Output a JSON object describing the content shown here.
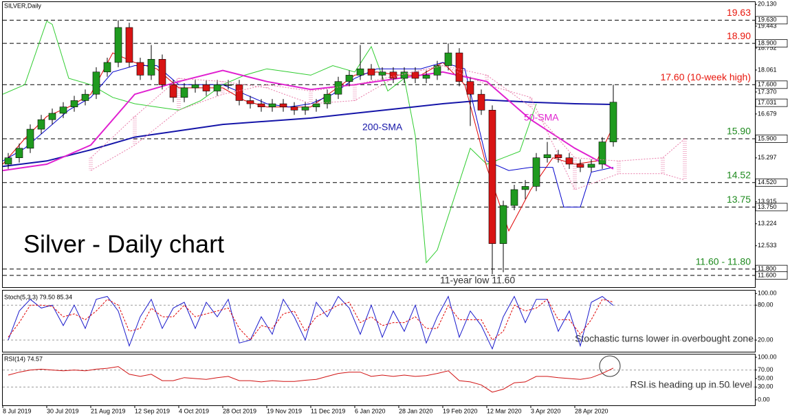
{
  "chart_data": [
    {
      "type": "candlestick",
      "title": "SILVER,Daily",
      "heading": "Silver - Daily chart",
      "note": "11-year low 11.60",
      "xlim": [
        0,
        273.5
      ],
      "ylim": [
        11.23,
        20.2
      ],
      "yticks": [
        {
          "value": 20.13,
          "label": "20.130"
        },
        {
          "value": 19.443,
          "label": "19.443"
        },
        {
          "value": 18.752,
          "label": "18.752"
        },
        {
          "value": 18.061,
          "label": "18.061"
        },
        {
          "value": 17.37,
          "label": "17.370"
        },
        {
          "value": 16.679,
          "label": "16.679"
        },
        {
          "value": 15.297,
          "label": "15.297"
        },
        {
          "value": 13.915,
          "label": "13.915"
        },
        {
          "value": 13.224,
          "label": "13.224"
        },
        {
          "value": 12.533,
          "label": "12.533"
        }
      ],
      "price_markers": [
        {
          "value": 19.63,
          "label": "19.630"
        },
        {
          "value": 18.9,
          "label": "18.900"
        },
        {
          "value": 17.6,
          "label": "17.600"
        },
        {
          "value": 17.031,
          "label": "17.031"
        },
        {
          "value": 15.9,
          "label": "15.900"
        },
        {
          "value": 14.52,
          "label": "14.520"
        },
        {
          "value": 13.75,
          "label": "13.750"
        },
        {
          "value": 11.8,
          "label": "11.800"
        },
        {
          "value": 11.6,
          "label": "11.600"
        }
      ],
      "levels": [
        {
          "value": 19.63,
          "label": "19.63",
          "color": "#e8160c"
        },
        {
          "value": 18.9,
          "label": "18.90",
          "color": "#e8160c"
        },
        {
          "value": 17.6,
          "label": "17.60 (10-week high)",
          "color": "#e8160c"
        },
        {
          "value": 15.9,
          "label": "15.90",
          "color": "#1e8a1e"
        },
        {
          "value": 14.52,
          "label": "14.52",
          "color": "#1e8a1e"
        },
        {
          "value": 13.75,
          "label": "13.75",
          "color": "#1e8a1e"
        },
        {
          "value": 11.8,
          "label": "11.60 - 11.80",
          "color": "#1e8a1e"
        },
        {
          "value": 11.6
        }
      ],
      "up_color": "#1f9a1f",
      "down_color": "#d81414",
      "x": [
        2,
        6,
        10,
        14,
        18,
        22,
        26,
        30,
        34,
        38,
        42,
        46,
        50,
        54,
        58,
        62,
        66,
        70,
        74,
        78,
        82,
        86,
        90,
        94,
        98,
        102,
        106,
        110,
        114,
        118,
        122,
        126,
        130,
        134,
        138,
        142,
        146,
        150,
        154,
        158,
        162,
        166,
        170,
        174,
        178,
        182,
        186,
        190,
        194,
        198,
        202,
        206,
        210,
        214,
        218,
        222
      ],
      "open": [
        15.1,
        15.3,
        15.6,
        16.2,
        16.5,
        16.7,
        16.9,
        17.1,
        17.3,
        18.0,
        18.3,
        19.4,
        18.3,
        17.9,
        18.4,
        17.6,
        17.2,
        17.5,
        17.6,
        17.4,
        17.6,
        17.6,
        17.1,
        17.0,
        16.9,
        17.0,
        16.9,
        16.8,
        16.9,
        17.0,
        17.3,
        17.7,
        17.9,
        18.1,
        17.9,
        18.0,
        17.8,
        18.0,
        17.8,
        17.9,
        18.2,
        18.6,
        17.7,
        17.3,
        16.8,
        12.6,
        13.8,
        14.3,
        14.4,
        15.3,
        15.4,
        15.3,
        15.1,
        15.0,
        15.1,
        15.8
      ],
      "high": [
        15.45,
        15.75,
        16.35,
        16.65,
        16.85,
        17.05,
        17.25,
        17.45,
        18.15,
        18.45,
        19.63,
        19.55,
        18.45,
        18.85,
        18.55,
        17.75,
        17.65,
        17.75,
        17.75,
        17.75,
        17.75,
        17.75,
        17.25,
        17.15,
        17.15,
        17.15,
        17.05,
        17.05,
        17.15,
        17.45,
        17.85,
        18.05,
        18.85,
        18.25,
        18.15,
        18.15,
        18.15,
        18.15,
        18.05,
        18.35,
        18.9,
        18.75,
        17.85,
        17.45,
        16.95,
        13.95,
        14.45,
        14.6,
        15.45,
        15.8,
        15.55,
        15.45,
        15.25,
        15.25,
        15.95,
        17.6
      ],
      "low": [
        14.95,
        15.15,
        15.45,
        16.05,
        16.35,
        16.55,
        16.75,
        16.95,
        17.15,
        17.85,
        18.15,
        18.15,
        17.75,
        17.75,
        17.45,
        17.05,
        17.05,
        17.35,
        17.25,
        17.25,
        17.45,
        16.95,
        16.85,
        16.75,
        16.75,
        16.75,
        16.65,
        16.65,
        16.75,
        16.85,
        17.15,
        17.55,
        17.75,
        17.75,
        17.75,
        17.65,
        17.65,
        17.65,
        17.65,
        17.75,
        18.05,
        17.55,
        16.3,
        16.65,
        11.64,
        11.7,
        13.65,
        14.0,
        14.25,
        15.15,
        15.15,
        14.95,
        14.85,
        14.85,
        14.95,
        15.65
      ],
      "close": [
        15.3,
        15.6,
        16.2,
        16.5,
        16.7,
        16.9,
        17.1,
        17.3,
        18.0,
        18.3,
        19.4,
        18.3,
        17.9,
        18.4,
        17.6,
        17.2,
        17.5,
        17.6,
        17.4,
        17.6,
        17.6,
        17.1,
        17.0,
        16.9,
        17.0,
        16.9,
        16.8,
        16.9,
        17.0,
        17.3,
        17.7,
        17.9,
        18.1,
        17.9,
        18.0,
        17.8,
        18.0,
        17.8,
        17.9,
        18.2,
        18.6,
        17.7,
        17.3,
        16.8,
        12.6,
        13.8,
        14.3,
        14.4,
        15.3,
        15.4,
        15.3,
        15.1,
        15.0,
        15.1,
        15.8,
        17.05
      ],
      "cloud": {
        "color": "#e87aa8",
        "x": [
          32,
          48,
          64,
          80,
          96,
          112,
          128,
          144,
          160,
          176,
          192,
          208,
          224,
          240,
          248
        ],
        "span_a": [
          15.3,
          16.6,
          17.8,
          17.7,
          17.5,
          17.0,
          17.1,
          17.9,
          18.2,
          17.9,
          16.9,
          15.3,
          15.2,
          15.3,
          15.9
        ],
        "span_b": [
          14.9,
          15.7,
          16.8,
          17.3,
          17.6,
          17.4,
          17.6,
          17.9,
          18.2,
          17.6,
          17.2,
          14.3,
          14.8,
          14.8,
          14.6
        ]
      },
      "series": [
        {
          "color": "#2ecc2e",
          "width": 1,
          "x": [
            0,
            8,
            16,
            18,
            24,
            32,
            40,
            48,
            56,
            64,
            72,
            80,
            88,
            96,
            104,
            112,
            120,
            128,
            134,
            140,
            146,
            150,
            154,
            158,
            164,
            170,
            176,
            182,
            188,
            194
          ],
          "values": [
            17.3,
            17.6,
            19.6,
            19.5,
            17.8,
            17.6,
            17.2,
            17.0,
            16.9,
            16.8,
            17.1,
            17.6,
            17.9,
            18.1,
            18.0,
            17.9,
            18.2,
            18.0,
            18.8,
            17.4,
            17.8,
            16.0,
            12.0,
            12.4,
            14.0,
            15.6,
            15.1,
            15.3,
            15.5,
            17.0
          ]
        },
        {
          "color": "#e00000",
          "width": 1,
          "x": [
            0,
            8,
            16,
            24,
            32,
            40,
            48,
            56,
            64,
            72,
            80,
            88,
            96,
            104,
            112,
            120,
            128,
            136,
            144,
            152,
            160,
            168,
            176,
            184,
            192,
            200,
            208,
            216,
            222
          ],
          "values": [
            15.1,
            15.9,
            16.6,
            16.9,
            17.3,
            18.6,
            18.3,
            18.1,
            17.5,
            17.5,
            17.5,
            17.1,
            16.9,
            16.9,
            16.9,
            17.4,
            17.9,
            18.0,
            17.9,
            17.9,
            18.3,
            17.6,
            15.0,
            13.0,
            14.3,
            15.3,
            15.1,
            15.2,
            16.3
          ]
        },
        {
          "color": "#0000cc",
          "width": 1,
          "x": [
            0,
            8,
            16,
            24,
            32,
            40,
            48,
            56,
            64,
            72,
            80,
            88,
            96,
            104,
            112,
            120,
            128,
            136,
            144,
            152,
            160,
            168,
            176,
            184,
            192,
            200,
            204,
            210,
            214,
            222
          ],
          "values": [
            15.2,
            15.6,
            16.2,
            16.8,
            17.2,
            18.0,
            18.2,
            18.2,
            17.6,
            17.6,
            17.6,
            17.3,
            17.0,
            16.9,
            17.0,
            17.3,
            17.8,
            18.1,
            18.1,
            18.1,
            18.3,
            18.1,
            15.2,
            14.9,
            15.0,
            15.0,
            13.75,
            13.75,
            14.85,
            15.0
          ]
        },
        {
          "name": "200-SMA",
          "color": "#1414a8",
          "width": 2,
          "x": [
            0,
            16,
            32,
            48,
            64,
            80,
            96,
            112,
            128,
            144,
            160,
            176,
            192,
            208,
            222
          ],
          "values": [
            15.03,
            15.2,
            15.55,
            15.95,
            16.15,
            16.35,
            16.45,
            16.55,
            16.7,
            16.85,
            17.0,
            17.12,
            17.05,
            17.0,
            16.98
          ]
        },
        {
          "name": "50-SMA",
          "color": "#e020d0",
          "width": 2,
          "x": [
            0,
            16,
            32,
            48,
            64,
            80,
            96,
            112,
            128,
            144,
            160,
            176,
            192,
            208,
            222
          ],
          "values": [
            14.9,
            15.1,
            15.7,
            17.3,
            17.7,
            18.05,
            17.7,
            17.45,
            17.6,
            17.8,
            18.0,
            17.7,
            16.5,
            15.6,
            14.95
          ]
        }
      ]
    },
    {
      "type": "line",
      "title": "Stoch(5,3,3) 79.50 85.34",
      "note": "Stochastic turns lower in overbought zone",
      "xlim": [
        0,
        273.5
      ],
      "ylim": [
        0,
        105
      ],
      "yticks": [
        {
          "value": 100,
          "label": "100.00"
        },
        {
          "value": 80,
          "label": "80.00"
        },
        {
          "value": 20,
          "label": "20.00"
        }
      ],
      "levels": [
        80,
        20
      ],
      "x": [
        2,
        6,
        10,
        14,
        18,
        22,
        26,
        30,
        34,
        38,
        42,
        46,
        50,
        54,
        58,
        62,
        66,
        70,
        74,
        78,
        82,
        86,
        90,
        94,
        98,
        102,
        106,
        110,
        114,
        118,
        122,
        126,
        130,
        134,
        138,
        142,
        146,
        150,
        154,
        158,
        162,
        166,
        170,
        174,
        178,
        182,
        186,
        190,
        194,
        198,
        202,
        206,
        210,
        214,
        218,
        222
      ],
      "series": [
        {
          "color": "#1a1acc",
          "values": [
            20,
            70,
            90,
            75,
            80,
            45,
            80,
            40,
            90,
            95,
            70,
            10,
            60,
            90,
            40,
            75,
            85,
            40,
            85,
            60,
            90,
            15,
            20,
            60,
            30,
            90,
            60,
            20,
            85,
            60,
            95,
            75,
            30,
            80,
            25,
            70,
            35,
            80,
            15,
            60,
            95,
            25,
            70,
            45,
            5,
            60,
            95,
            50,
            90,
            90,
            35,
            70,
            10,
            85,
            95,
            79.5
          ]
        },
        {
          "color": "#e00000",
          "dashed": true,
          "values": [
            25,
            50,
            80,
            80,
            78,
            60,
            65,
            55,
            70,
            90,
            80,
            35,
            40,
            75,
            60,
            60,
            80,
            60,
            65,
            70,
            75,
            40,
            20,
            45,
            40,
            65,
            70,
            35,
            60,
            70,
            80,
            85,
            50,
            60,
            45,
            50,
            50,
            60,
            40,
            40,
            80,
            55,
            55,
            55,
            20,
            35,
            80,
            70,
            75,
            90,
            55,
            55,
            30,
            55,
            90,
            85.34
          ]
        }
      ]
    },
    {
      "type": "line",
      "title": "RSI(14) 74.57",
      "note": "RSI is heading up in 50 level",
      "xlim": [
        0,
        273.5
      ],
      "ylim": [
        -13,
        106.5
      ],
      "yticks": [
        {
          "value": 100,
          "label": "100.00"
        },
        {
          "value": 70,
          "label": "70.00"
        },
        {
          "value": 50,
          "label": "50.00"
        },
        {
          "value": 30,
          "label": "30.00"
        },
        {
          "value": 0,
          "label": "0.00"
        }
      ],
      "levels": [
        70,
        30
      ],
      "xticks": [
        {
          "value": 0,
          "label": "8 Jul 2019"
        },
        {
          "value": 16,
          "label": "30 Jul 2019"
        },
        {
          "value": 32,
          "label": "21 Aug 2019"
        },
        {
          "value": 48,
          "label": "12 Sep 2019"
        },
        {
          "value": 64,
          "label": "4 Oct 2019"
        },
        {
          "value": 80,
          "label": "28 Oct 2019"
        },
        {
          "value": 96,
          "label": "19 Nov 2019"
        },
        {
          "value": 112,
          "label": "11 Dec 2019"
        },
        {
          "value": 128,
          "label": "6 Jan 2020"
        },
        {
          "value": 144,
          "label": "28 Jan 2020"
        },
        {
          "value": 160,
          "label": "19 Feb 2020"
        },
        {
          "value": 176,
          "label": "12 Mar 2020"
        },
        {
          "value": 192,
          "label": "3 Apr 2020"
        },
        {
          "value": 208,
          "label": "28 Apr 2020"
        }
      ],
      "x": [
        2,
        6,
        10,
        14,
        18,
        22,
        26,
        30,
        34,
        38,
        42,
        46,
        50,
        54,
        58,
        62,
        66,
        70,
        74,
        78,
        82,
        86,
        90,
        94,
        98,
        102,
        106,
        110,
        114,
        118,
        122,
        126,
        130,
        134,
        138,
        142,
        146,
        150,
        154,
        158,
        162,
        166,
        170,
        174,
        178,
        182,
        186,
        190,
        194,
        198,
        202,
        206,
        210,
        214,
        218,
        222
      ],
      "series": [
        {
          "color": "#d01010",
          "values": [
            58,
            65,
            70,
            72,
            70,
            68,
            70,
            68,
            72,
            74,
            78,
            60,
            55,
            60,
            45,
            45,
            52,
            50,
            48,
            52,
            55,
            45,
            45,
            42,
            45,
            43,
            43,
            46,
            48,
            55,
            62,
            65,
            65,
            55,
            58,
            55,
            58,
            55,
            57,
            62,
            68,
            45,
            42,
            35,
            18,
            25,
            40,
            42,
            55,
            55,
            52,
            50,
            48,
            52,
            62,
            74.57
          ]
        }
      ]
    }
  ]
}
